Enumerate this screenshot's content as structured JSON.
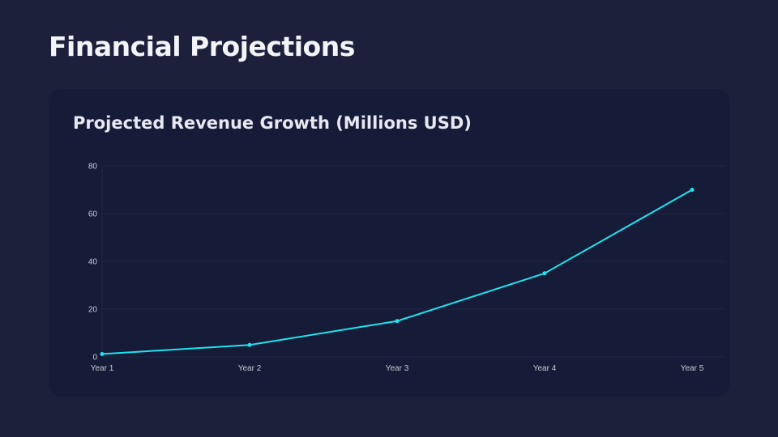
{
  "page": {
    "title": "Financial Projections"
  },
  "chart_data": {
    "type": "line",
    "title": "Projected Revenue Growth (Millions USD)",
    "categories": [
      "Year 1",
      "Year 2",
      "Year 3",
      "Year 4",
      "Year 5"
    ],
    "series": [
      {
        "values": [
          1.2,
          5,
          15,
          35,
          70
        ],
        "color": "#1de4f0"
      }
    ],
    "ylim": [
      0,
      80
    ],
    "yticks": [
      "0",
      "20",
      "40",
      "60",
      "80"
    ],
    "xlabel": "",
    "ylabel": "",
    "grid": true,
    "legend": "none"
  }
}
